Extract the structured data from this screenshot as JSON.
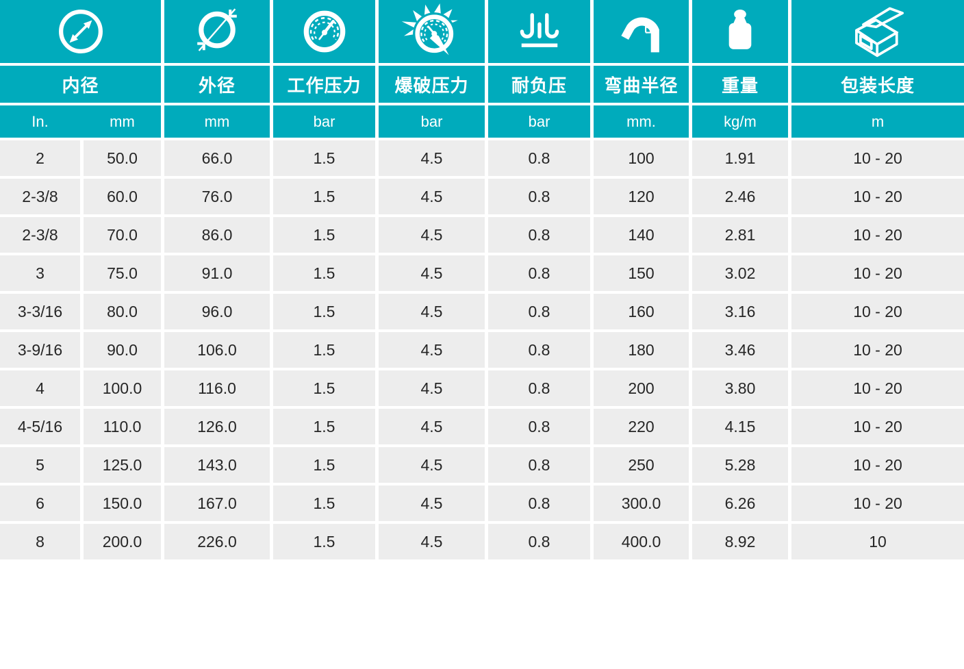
{
  "theme": {
    "header_teal": "#00ABBC",
    "cell_gray": "#EDEDED",
    "data_text": "#262626",
    "header_text": "#FFFFFF",
    "page_background": "#FFFFFF"
  },
  "table": {
    "columns": [
      {
        "icon": "inner-diameter-icon",
        "label": "内径",
        "units": [
          "In.",
          "mm"
        ]
      },
      {
        "icon": "outer-diameter-icon",
        "label": "外径",
        "unit": "mm"
      },
      {
        "icon": "pressure-gauge-icon",
        "label": "工作压力",
        "unit": "bar"
      },
      {
        "icon": "burst-pressure-icon",
        "label": "爆破压力",
        "unit": "bar"
      },
      {
        "icon": "vacuum-resistance-icon",
        "label": "耐负压",
        "unit": "bar"
      },
      {
        "icon": "bend-radius-icon",
        "label": "弯曲半径",
        "unit": "mm."
      },
      {
        "icon": "weight-icon",
        "label": "重量",
        "unit": "kg/m"
      },
      {
        "icon": "packing-box-icon",
        "label": "包装长度",
        "unit": "m"
      }
    ],
    "rows": [
      [
        "2",
        "50.0",
        "66.0",
        "1.5",
        "4.5",
        "0.8",
        "100",
        "1.91",
        "10 - 20"
      ],
      [
        "2-3/8",
        "60.0",
        "76.0",
        "1.5",
        "4.5",
        "0.8",
        "120",
        "2.46",
        "10 - 20"
      ],
      [
        "2-3/8",
        "70.0",
        "86.0",
        "1.5",
        "4.5",
        "0.8",
        "140",
        "2.81",
        "10 - 20"
      ],
      [
        "3",
        "75.0",
        "91.0",
        "1.5",
        "4.5",
        "0.8",
        "150",
        "3.02",
        "10 - 20"
      ],
      [
        "3-3/16",
        "80.0",
        "96.0",
        "1.5",
        "4.5",
        "0.8",
        "160",
        "3.16",
        "10 - 20"
      ],
      [
        "3-9/16",
        "90.0",
        "106.0",
        "1.5",
        "4.5",
        "0.8",
        "180",
        "3.46",
        "10 - 20"
      ],
      [
        "4",
        "100.0",
        "116.0",
        "1.5",
        "4.5",
        "0.8",
        "200",
        "3.80",
        "10 - 20"
      ],
      [
        "4-5/16",
        "110.0",
        "126.0",
        "1.5",
        "4.5",
        "0.8",
        "220",
        "4.15",
        "10 - 20"
      ],
      [
        "5",
        "125.0",
        "143.0",
        "1.5",
        "4.5",
        "0.8",
        "250",
        "5.28",
        "10 - 20"
      ],
      [
        "6",
        "150.0",
        "167.0",
        "1.5",
        "4.5",
        "0.8",
        "300.0",
        "6.26",
        "10 - 20"
      ],
      [
        "8",
        "200.0",
        "226.0",
        "1.5",
        "4.5",
        "0.8",
        "400.0",
        "8.92",
        "10"
      ]
    ]
  }
}
